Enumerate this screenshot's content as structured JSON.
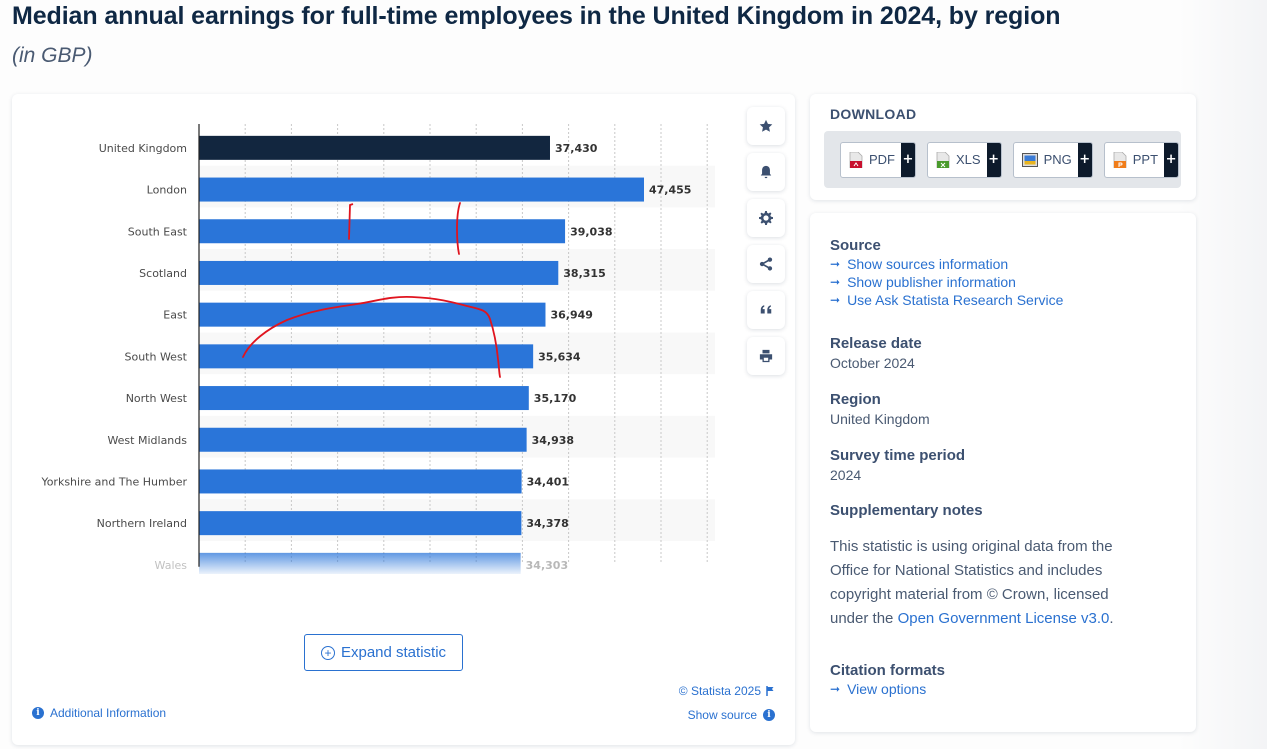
{
  "header": {
    "title": "Median annual earnings for full-time employees in the United Kingdom in 2024, by region",
    "subtitle": "(in GBP)"
  },
  "chart_data": {
    "type": "bar",
    "orientation": "horizontal",
    "title": "Median annual earnings for full-time employees in the United Kingdom in 2024, by region",
    "subtitle": "(in GBP)",
    "xlabel": "",
    "ylabel": "",
    "categories": [
      "United Kingdom",
      "London",
      "South East",
      "Scotland",
      "East",
      "South West",
      "North West",
      "West Midlands",
      "Yorkshire and The Humber",
      "Northern Ireland",
      "Wales"
    ],
    "values": [
      37430,
      47455,
      39038,
      38315,
      36949,
      35634,
      35170,
      34938,
      34401,
      34378,
      34303
    ],
    "value_labels": [
      "37,430",
      "47,455",
      "39,038",
      "38,315",
      "36,949",
      "35,634",
      "35,170",
      "34,938",
      "34,401",
      "34,378",
      "34,303"
    ],
    "highlight_category": "United Kingdom",
    "colors": {
      "highlight": "#12263f",
      "default": "#2a75d9"
    },
    "xlim": [
      0,
      55000
    ],
    "grid": true,
    "truncated_last_row": true
  },
  "toolbar": {
    "tools": [
      {
        "name": "favorite",
        "icon": "star-icon"
      },
      {
        "name": "notification",
        "icon": "bell-icon"
      },
      {
        "name": "settings",
        "icon": "gear-icon"
      },
      {
        "name": "share",
        "icon": "share-icon"
      },
      {
        "name": "cite",
        "icon": "quote-icon"
      },
      {
        "name": "print",
        "icon": "print-icon"
      }
    ]
  },
  "chart_footer": {
    "expand_label": "Expand statistic",
    "copyright": "© Statista 2025",
    "show_source": "Show source",
    "additional_info": "Additional Information"
  },
  "download": {
    "title": "DOWNLOAD",
    "buttons": [
      {
        "label": "PDF",
        "color": "#c8102e"
      },
      {
        "label": "XLS",
        "color": "#4a9b2c"
      },
      {
        "label": "PNG",
        "color": "#3a7bd5"
      },
      {
        "label": "PPT",
        "color": "#f07d1a"
      }
    ],
    "plus": "+"
  },
  "info": {
    "source": {
      "heading": "Source",
      "links": [
        "Show sources information",
        "Show publisher information",
        "Use Ask Statista Research Service"
      ]
    },
    "release_date": {
      "heading": "Release date",
      "value": "October 2024"
    },
    "region": {
      "heading": "Region",
      "value": "United Kingdom"
    },
    "survey_period": {
      "heading": "Survey time period",
      "value": "2024"
    },
    "supplementary": {
      "heading": "Supplementary notes",
      "text_before": "This statistic is using original data from the Office for National Statistics and includes copyright material from © Crown, licensed under the ",
      "link": "Open Government License v3.0",
      "text_after": "."
    },
    "citation": {
      "heading": "Citation formats",
      "link": "View options"
    }
  },
  "annotations": {
    "description": "Red hand-drawn pen marks over chart",
    "color": "#e0141e"
  }
}
